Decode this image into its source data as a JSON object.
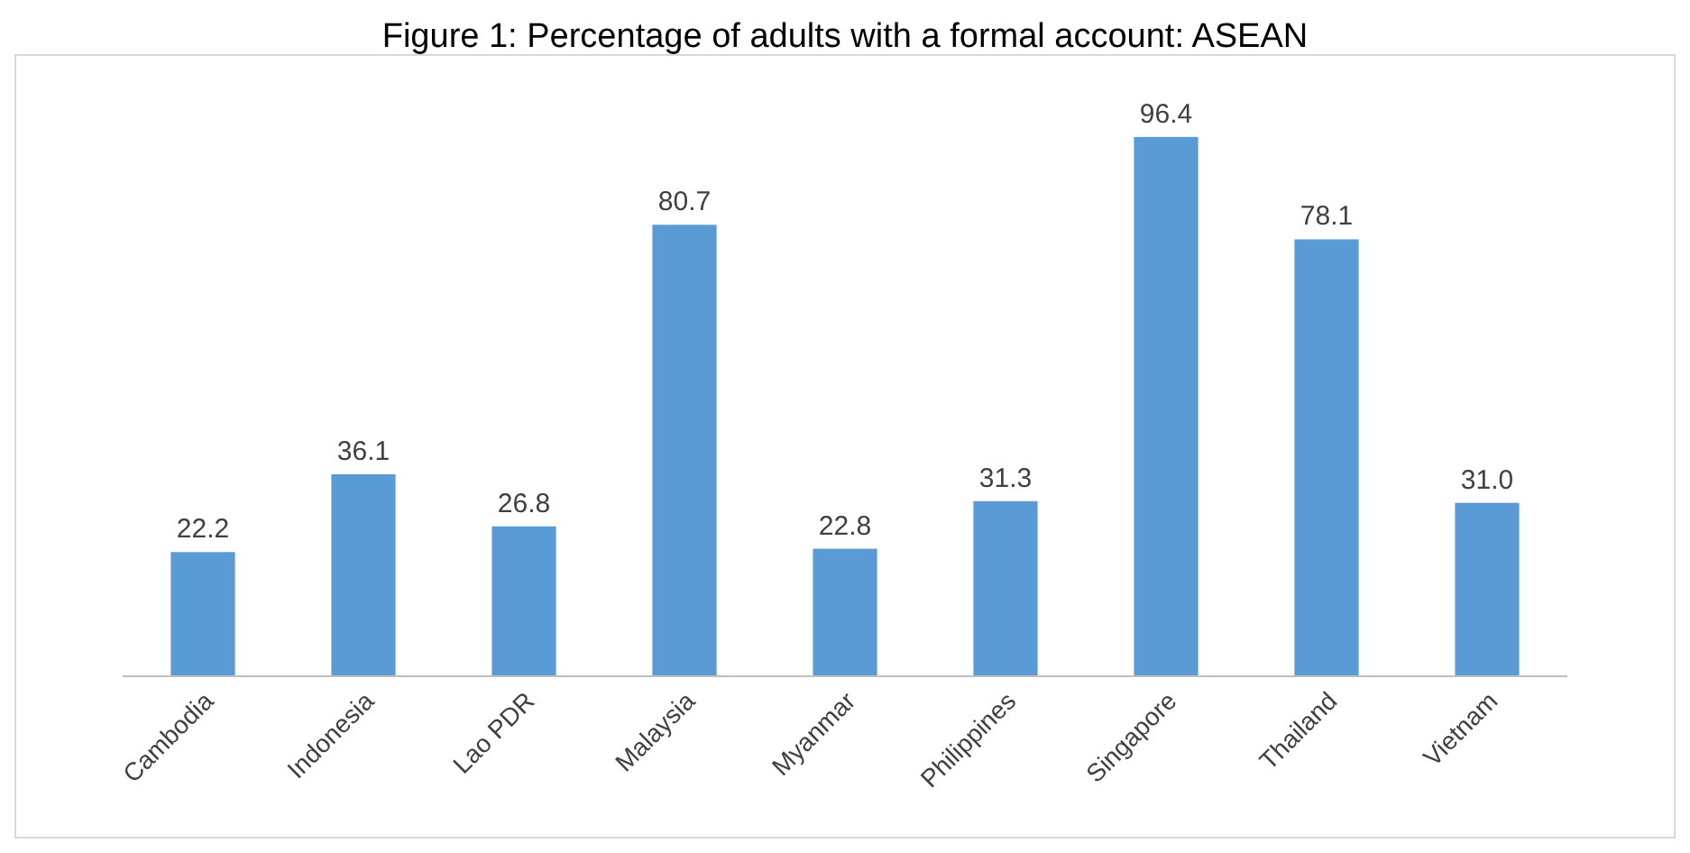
{
  "chart_data": {
    "type": "bar",
    "title": "Figure 1: Percentage of adults with a formal account: ASEAN",
    "categories": [
      "Cambodia",
      "Indonesia",
      "Lao PDR",
      "Malaysia",
      "Myanmar",
      "Philippines",
      "Singapore",
      "Thailand",
      "Vietnam"
    ],
    "values": [
      22.2,
      36.1,
      26.8,
      80.7,
      22.8,
      31.3,
      96.4,
      78.1,
      31.0
    ],
    "value_labels": [
      "22.2",
      "36.1",
      "26.8",
      "80.7",
      "22.8",
      "31.3",
      "96.4",
      "78.1",
      "31.0"
    ],
    "color": "#5b9bd5"
  }
}
